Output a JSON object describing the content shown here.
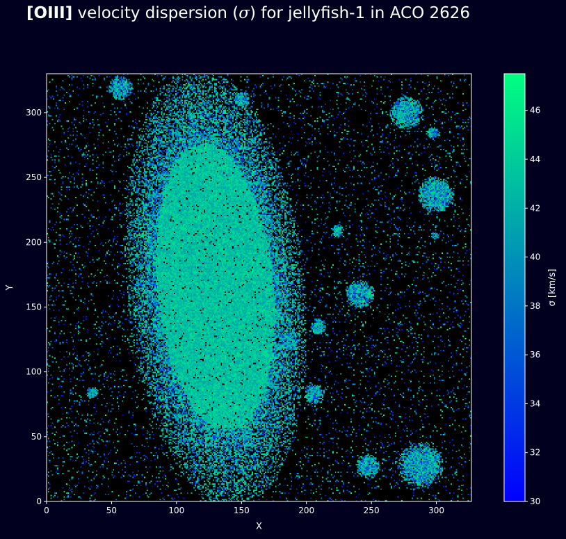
{
  "title": {
    "bold": "[OIII]",
    "pre": " velocity dispersion (",
    "sigma": "σ",
    "post": ") for jellyfish-1 in ACO 2626"
  },
  "chart_data": {
    "type": "heatmap",
    "xlabel": "X",
    "ylabel": "Y",
    "xlim": [
      0,
      327
    ],
    "ylim": [
      0,
      330
    ],
    "xticks": [
      0,
      50,
      100,
      150,
      200,
      250,
      300
    ],
    "yticks": [
      0,
      50,
      100,
      150,
      200,
      250,
      300
    ],
    "colorbar": {
      "label": "σ [km/s]",
      "range": [
        30,
        47.5
      ],
      "ticks": [
        30,
        32,
        34,
        36,
        38,
        40,
        42,
        44,
        46
      ],
      "colormap": "winter",
      "colors": [
        "#0000ff",
        "#00ff80"
      ]
    },
    "background_color": "#000000",
    "main_galaxy": {
      "x_center": 130,
      "y_center": 165,
      "x_extent": [
        75,
        195
      ],
      "y_extent": [
        20,
        315
      ]
    },
    "compact_sources": [
      {
        "x": 288,
        "y": 28,
        "r": 11
      },
      {
        "x": 247,
        "y": 27,
        "r": 6
      },
      {
        "x": 277,
        "y": 300,
        "r": 8
      },
      {
        "x": 297,
        "y": 284,
        "r": 3
      },
      {
        "x": 300,
        "y": 237,
        "r": 9
      },
      {
        "x": 241,
        "y": 160,
        "r": 7
      },
      {
        "x": 206,
        "y": 83,
        "r": 5
      },
      {
        "x": 187,
        "y": 123,
        "r": 5
      },
      {
        "x": 224,
        "y": 209,
        "r": 3
      },
      {
        "x": 35,
        "y": 84,
        "r": 3
      },
      {
        "x": 150,
        "y": 310,
        "r": 4
      },
      {
        "x": 57,
        "y": 319,
        "r": 6
      },
      {
        "x": 209,
        "y": 135,
        "r": 4
      },
      {
        "x": 299,
        "y": 205,
        "r": 2
      }
    ]
  }
}
